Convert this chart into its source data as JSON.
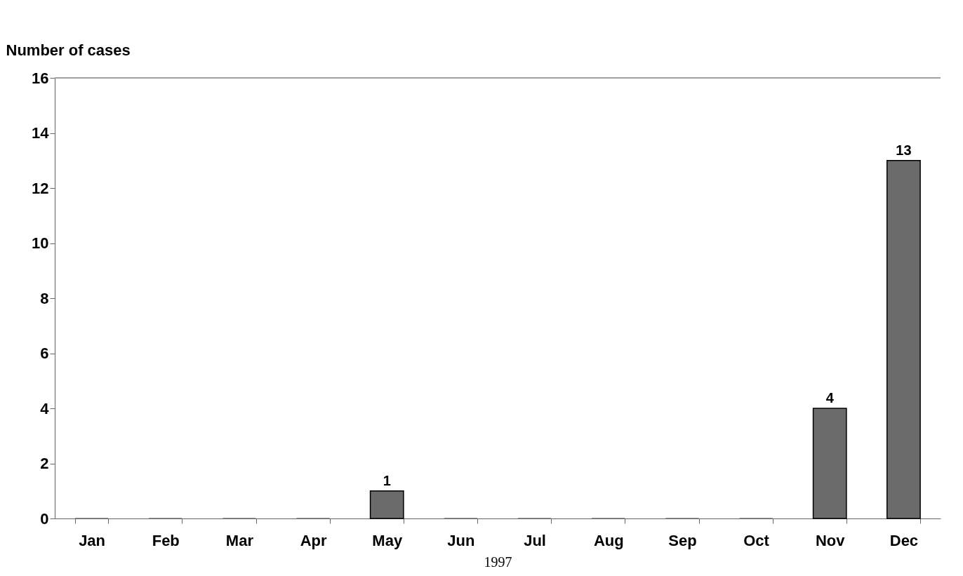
{
  "chart_data": {
    "type": "bar",
    "ylabel": "Number of cases",
    "xlabel": "1997",
    "categories": [
      "Jan",
      "Feb",
      "Mar",
      "Apr",
      "May",
      "Jun",
      "Jul",
      "Aug",
      "Sep",
      "Oct",
      "Nov",
      "Dec"
    ],
    "values": [
      0,
      0,
      0,
      0,
      1,
      0,
      0,
      0,
      0,
      0,
      4,
      13
    ],
    "value_labels": [
      null,
      null,
      null,
      null,
      "1",
      null,
      null,
      null,
      null,
      null,
      "4",
      "13"
    ],
    "color": "#6b6b6b",
    "ylim": [
      0,
      16
    ],
    "yticks": [
      0,
      2,
      4,
      6,
      8,
      10,
      12,
      14,
      16
    ],
    "grid": false,
    "ref_lines": [
      {
        "axis": "y",
        "value": 16,
        "color": "#a0a0a0"
      }
    ]
  }
}
